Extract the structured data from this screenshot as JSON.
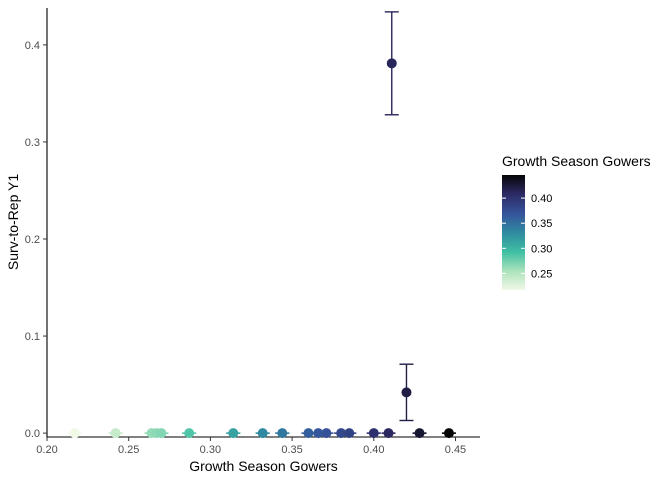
{
  "chart_data": {
    "type": "scatter",
    "title": "",
    "xlabel": "Growth Season Gowers",
    "ylabel": "Surv-to-Rep Y1",
    "xlim": [
      0.2,
      0.465
    ],
    "ylim": [
      -0.004,
      0.438
    ],
    "x_ticks": [
      0.2,
      0.25,
      0.3,
      0.35,
      0.4,
      0.45
    ],
    "x_tick_labels": [
      "0.20",
      "0.25",
      "0.30",
      "0.35",
      "0.40",
      "0.45"
    ],
    "y_ticks": [
      0.0,
      0.1,
      0.2,
      0.3,
      0.4
    ],
    "y_tick_labels": [
      "0.0",
      "0.1",
      "0.2",
      "0.3",
      "0.4"
    ],
    "grid": false,
    "points": [
      {
        "x": 0.217,
        "y": 0.0,
        "lower": 0.0,
        "upper": 0.0
      },
      {
        "x": 0.242,
        "y": 0.0,
        "lower": 0.0,
        "upper": 0.0
      },
      {
        "x": 0.264,
        "y": 0.0,
        "lower": 0.0,
        "upper": 0.0
      },
      {
        "x": 0.267,
        "y": 0.0,
        "lower": 0.0,
        "upper": 0.0
      },
      {
        "x": 0.27,
        "y": 0.0,
        "lower": 0.0,
        "upper": 0.0
      },
      {
        "x": 0.287,
        "y": 0.0,
        "lower": 0.0,
        "upper": 0.0
      },
      {
        "x": 0.314,
        "y": 0.0,
        "lower": 0.0,
        "upper": 0.0
      },
      {
        "x": 0.332,
        "y": 0.0,
        "lower": 0.0,
        "upper": 0.0
      },
      {
        "x": 0.344,
        "y": 0.0,
        "lower": 0.0,
        "upper": 0.0
      },
      {
        "x": 0.36,
        "y": 0.0,
        "lower": 0.0,
        "upper": 0.0
      },
      {
        "x": 0.366,
        "y": 0.0,
        "lower": 0.0,
        "upper": 0.0
      },
      {
        "x": 0.371,
        "y": 0.0,
        "lower": 0.0,
        "upper": 0.0
      },
      {
        "x": 0.38,
        "y": 0.0,
        "lower": 0.0,
        "upper": 0.0
      },
      {
        "x": 0.385,
        "y": 0.0,
        "lower": 0.0,
        "upper": 0.0
      },
      {
        "x": 0.4,
        "y": 0.0,
        "lower": 0.0,
        "upper": 0.0
      },
      {
        "x": 0.409,
        "y": 0.0,
        "lower": 0.0,
        "upper": 0.0
      },
      {
        "x": 0.411,
        "y": 0.381,
        "lower": 0.328,
        "upper": 0.434
      },
      {
        "x": 0.42,
        "y": 0.042,
        "lower": 0.013,
        "upper": 0.071
      },
      {
        "x": 0.428,
        "y": 0.0,
        "lower": 0.0,
        "upper": 0.0
      },
      {
        "x": 0.446,
        "y": 0.0,
        "lower": 0.0,
        "upper": 0.0
      }
    ],
    "legend": {
      "title": "Growth Season Gowers",
      "position": "right",
      "min": 0.217,
      "max": 0.446,
      "breaks": [
        0.25,
        0.3,
        0.35,
        0.4
      ],
      "break_labels": [
        "0.25",
        "0.30",
        "0.35",
        "0.40"
      ],
      "colors": [
        "#f0f8e6",
        "#aee4bd",
        "#3fbfa3",
        "#2f8aa0",
        "#35529a",
        "#2c2962",
        "#050505"
      ]
    }
  }
}
